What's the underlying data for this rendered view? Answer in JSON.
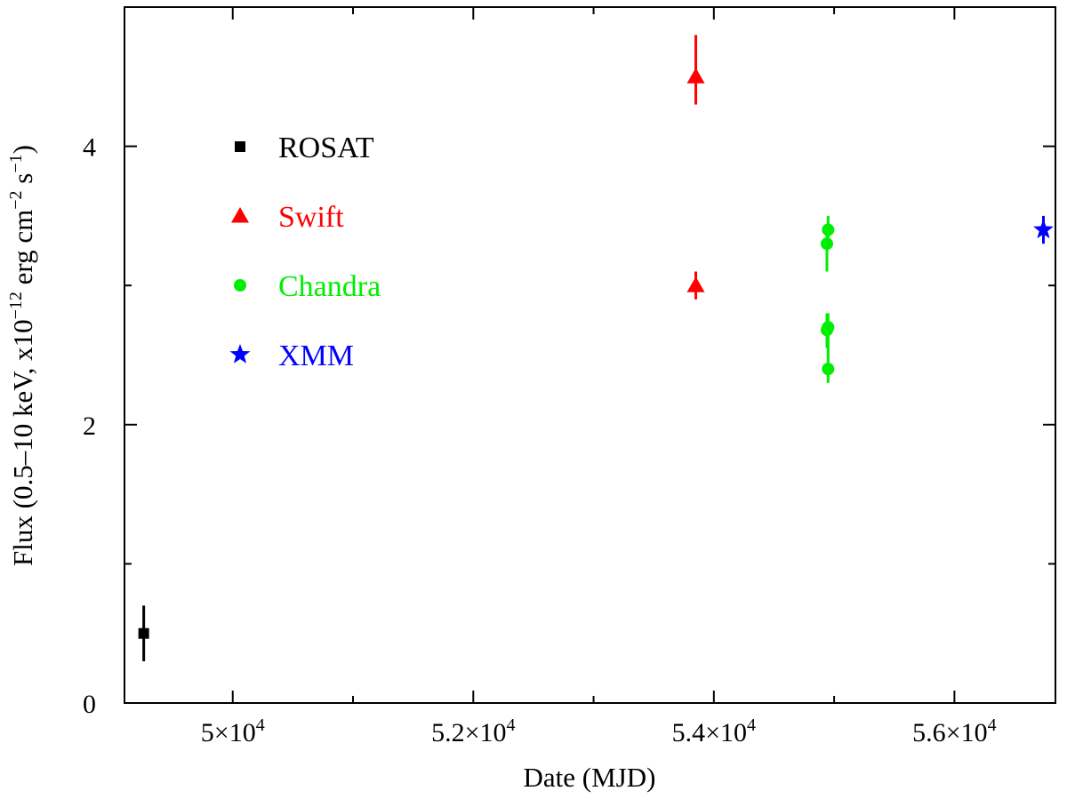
{
  "chart_data": {
    "type": "scatter",
    "title": "",
    "xlabel": "Date (MJD)",
    "ylabel": {
      "prefix": "Flux (0.5–10 keV, x10",
      "exp1": "−12",
      "mid1": " erg cm",
      "exp2": "−2",
      "mid2": " s",
      "exp3": "−1",
      "suffix": ")"
    },
    "xlim": [
      49100,
      56840
    ],
    "ylim": [
      0,
      5
    ],
    "xticks": [
      {
        "value": 50000,
        "mant": "5×10",
        "exp": "4"
      },
      {
        "value": 52000,
        "mant": "5.2×10",
        "exp": "4"
      },
      {
        "value": 54000,
        "mant": "5.4×10",
        "exp": "4"
      },
      {
        "value": 56000,
        "mant": "5.6×10",
        "exp": "4"
      }
    ],
    "x_minor_ticks": [
      51000,
      53000,
      55000
    ],
    "yticks": [
      {
        "value": 0,
        "label": "0"
      },
      {
        "value": 2,
        "label": "2"
      },
      {
        "value": 4,
        "label": "4"
      }
    ],
    "y_minor_ticks": [
      1,
      3
    ],
    "grid": false,
    "legend_position": "upper-left",
    "series": [
      {
        "name": "ROSAT",
        "marker": "square",
        "color": "#000000",
        "points": [
          {
            "x": 49260,
            "y": 0.5,
            "ylo": 0.3,
            "yhi": 0.7
          }
        ]
      },
      {
        "name": "Swift",
        "marker": "triangle",
        "color": "#ff0000",
        "points": [
          {
            "x": 53850,
            "y": 4.5,
            "ylo": 4.3,
            "yhi": 4.8
          },
          {
            "x": 53850,
            "y": 3.0,
            "ylo": 2.9,
            "yhi": 3.1
          }
        ]
      },
      {
        "name": "Chandra",
        "marker": "circle",
        "color": "#00ee00",
        "points": [
          {
            "x": 54950,
            "y": 3.4,
            "ylo": 3.3,
            "yhi": 3.5
          },
          {
            "x": 54940,
            "y": 3.3,
            "ylo": 3.1,
            "yhi": 3.4
          },
          {
            "x": 54950,
            "y": 2.7,
            "ylo": 2.5,
            "yhi": 2.8
          },
          {
            "x": 54940,
            "y": 2.68,
            "ylo": 2.55,
            "yhi": 2.8
          },
          {
            "x": 54950,
            "y": 2.4,
            "ylo": 2.3,
            "yhi": 2.5
          }
        ]
      },
      {
        "name": "XMM",
        "marker": "star",
        "color": "#0000ff",
        "points": [
          {
            "x": 56740,
            "y": 3.4,
            "ylo": 3.3,
            "yhi": 3.5
          }
        ]
      }
    ]
  }
}
